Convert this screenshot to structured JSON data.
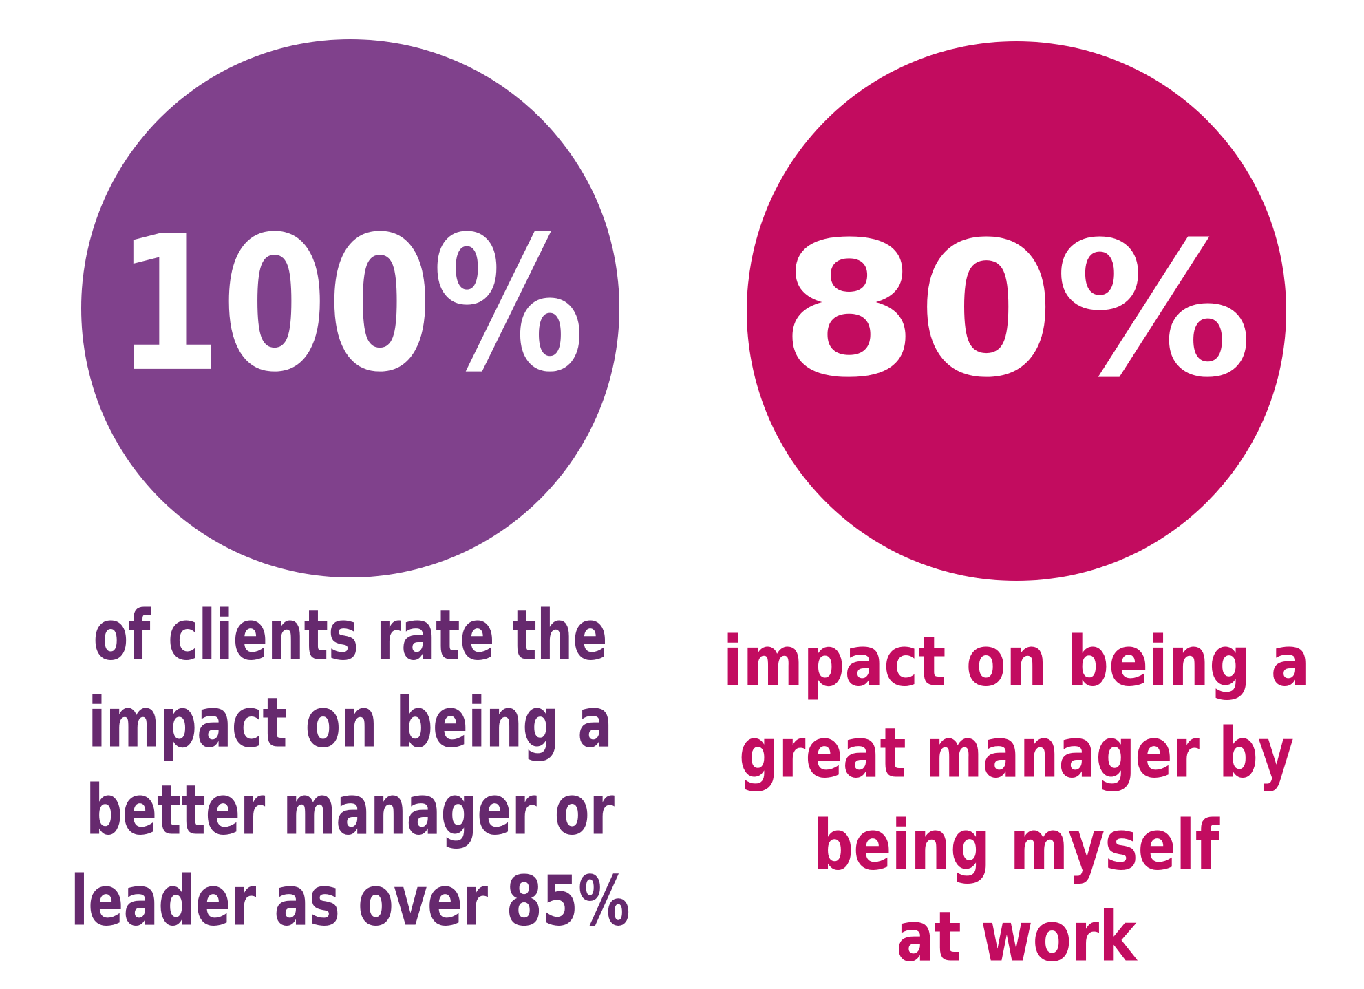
{
  "stats": [
    {
      "value": "100%",
      "caption_lines": [
        "of clients rate the",
        "impact on being a",
        "better manager or",
        "leader as over 85%"
      ]
    },
    {
      "value": "80%",
      "caption_lines": [
        "impact on being a",
        "great manager by",
        "being myself",
        "at work"
      ]
    }
  ]
}
